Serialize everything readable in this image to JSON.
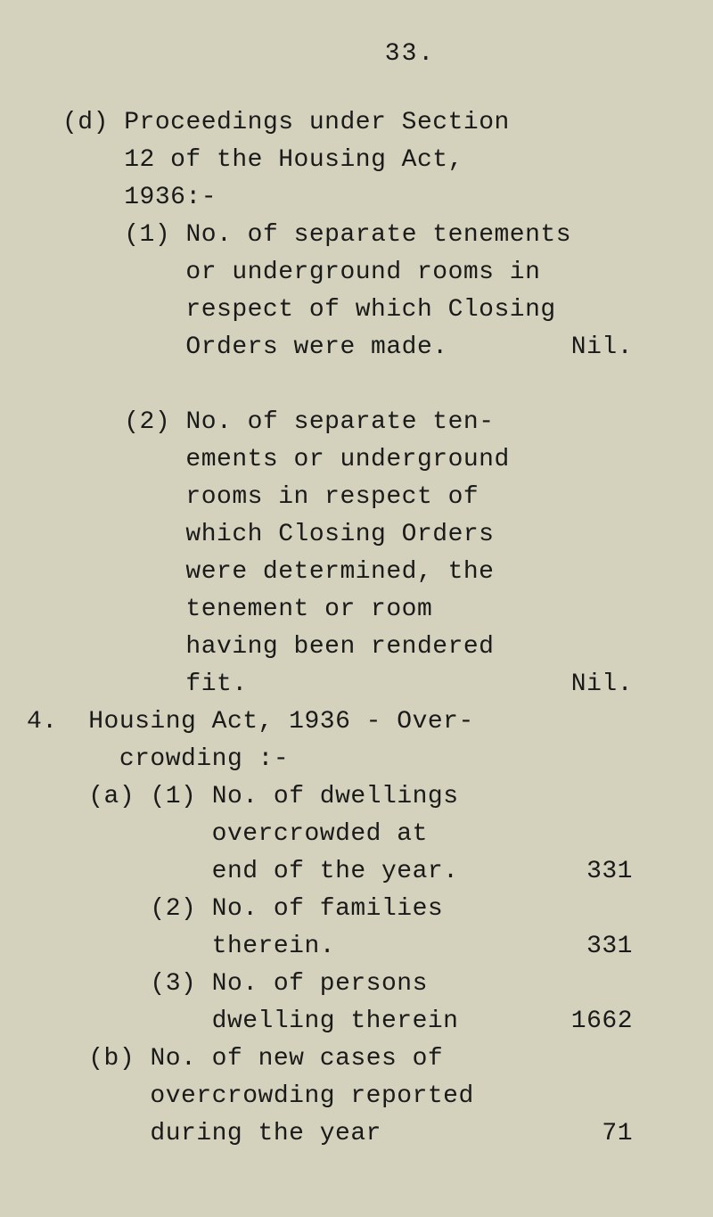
{
  "pageNumber": "33.",
  "item_d": {
    "label": "(d)",
    "heading_line1": "Proceedings under Section",
    "heading_line2": "12 of the Housing Act,",
    "heading_line3": "1936:-",
    "sub1": {
      "label": "(1)",
      "line1": "No. of separate tenements",
      "line2": "or underground rooms in",
      "line3": "respect of which Closing",
      "line4": "Orders were made.",
      "value": "Nil."
    },
    "sub2": {
      "label": "(2)",
      "line1": "No. of separate ten-",
      "line2": "ements or underground",
      "line3": "rooms in respect of",
      "line4": "which Closing Orders",
      "line5": "were determined, the",
      "line6": "tenement or room",
      "line7": "having been rendered",
      "line8": "fit.",
      "value": "Nil."
    }
  },
  "item_4": {
    "label": "4.",
    "heading_line1": "Housing Act, 1936 - Over-",
    "heading_line2": "crowding :-",
    "sub_a": {
      "label": "(a)",
      "sub1": {
        "label": "(1)",
        "line1": "No. of dwellings",
        "line2": "overcrowded at",
        "line3": "end of the year.",
        "value": "331"
      },
      "sub2": {
        "label": "(2)",
        "line1": "No. of families",
        "line2": "therein.",
        "value": "331"
      },
      "sub3": {
        "label": "(3)",
        "line1": "No. of persons",
        "line2": "dwelling therein",
        "value": "1662"
      }
    },
    "sub_b": {
      "label": "(b)",
      "line1": "No. of new cases of",
      "line2": "overcrowding reported",
      "line3": "during the year",
      "value": "71"
    }
  }
}
